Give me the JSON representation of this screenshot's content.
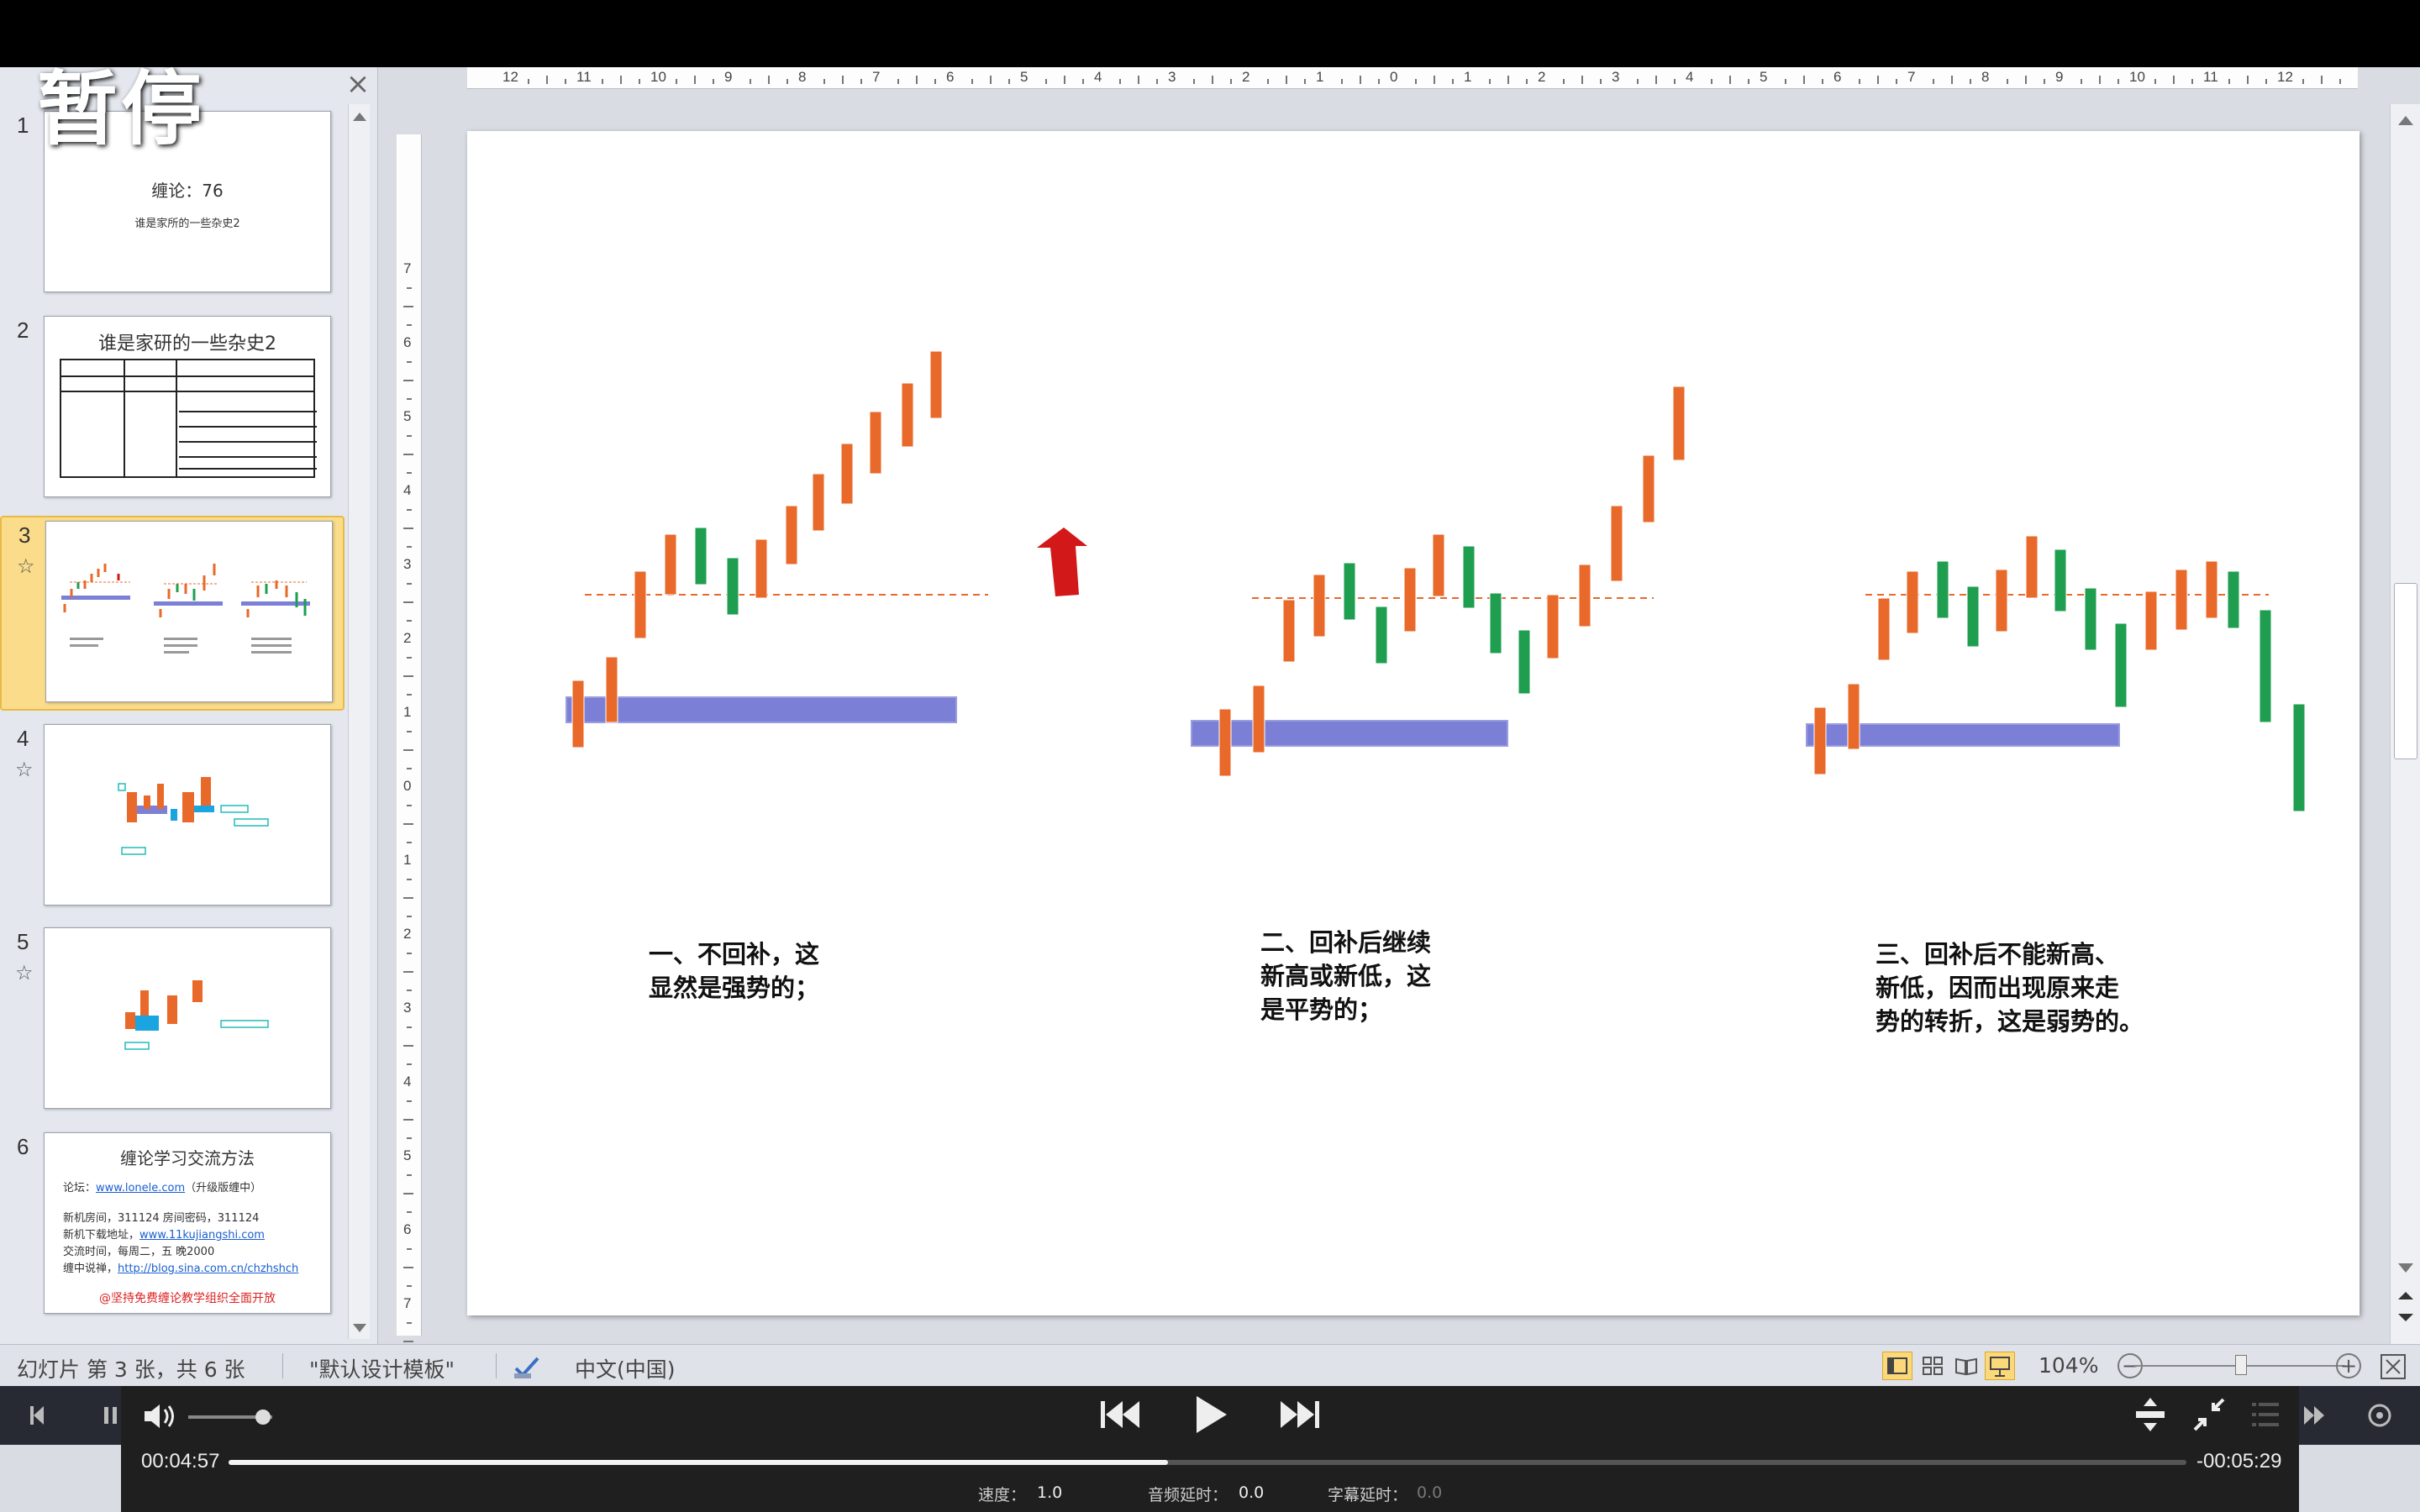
{
  "overlay": {
    "paused_label": "暂停"
  },
  "thumbnails": [
    {
      "number": "1",
      "title": "缠论：76",
      "subtitle": "谁是家所的一些杂史2"
    },
    {
      "number": "2",
      "title": "谁是家研的一些杂史2"
    },
    {
      "number": "3"
    },
    {
      "number": "4"
    },
    {
      "number": "5"
    },
    {
      "number": "6",
      "title": "缠论学习交流方法",
      "lines": [
        {
          "text": "论坛：",
          "link": "www.lonele.com",
          "after": "（升级版缠中）"
        },
        {
          "text": "新机房间，311124  房间密码，311124"
        },
        {
          "text": "新机下载地址，",
          "link": "www.11kujiangshi.com"
        },
        {
          "text": "交流时间，每周二，五 晚2000"
        },
        {
          "text": "缠中说禅，",
          "link": "http://blog.sina.com.cn/chzhshch"
        }
      ],
      "footer": "@坚持免费缠论教学组织全面开放"
    }
  ],
  "slide": {
    "captions": [
      [
        "一、不回补，这",
        "显然是强势的；"
      ],
      [
        "二、回补后继续",
        "新高或新低，这",
        "是平势的；"
      ],
      [
        "三、回补后不能新高、",
        "新低，因而出现原来走",
        "势的转折，这是弱势的。"
      ]
    ],
    "colors": {
      "up": "#e8692a",
      "down": "#1f9e50",
      "zone": "#7b7fd6",
      "arrow": "#d21818"
    }
  },
  "rulers": {
    "horizontal": [
      "12",
      "11",
      "10",
      "9",
      "8",
      "7",
      "6",
      "5",
      "4",
      "3",
      "2",
      "1",
      "0",
      "1",
      "2",
      "3",
      "4",
      "5",
      "6",
      "7",
      "8",
      "9",
      "10",
      "11",
      "12"
    ],
    "vertical": [
      "7",
      "6",
      "5",
      "4",
      "3",
      "2",
      "1",
      "0",
      "1",
      "2",
      "3",
      "4",
      "5",
      "6",
      "7"
    ]
  },
  "statusbar": {
    "slide_info": "幻灯片 第 3 张，共 6 张",
    "theme": "\"默认设计模板\"",
    "language": "中文(中国)",
    "zoom": "104%"
  },
  "player": {
    "elapsed": "00:04:57",
    "remaining": "-00:05:29",
    "progress": 0.48,
    "speed_label": "速度：",
    "speed_value": "1.0",
    "audio_delay_label": "音频延时：",
    "audio_delay_value": "0.0",
    "subtitle_delay_label": "字幕延时：",
    "subtitle_delay_value": "0.0"
  }
}
